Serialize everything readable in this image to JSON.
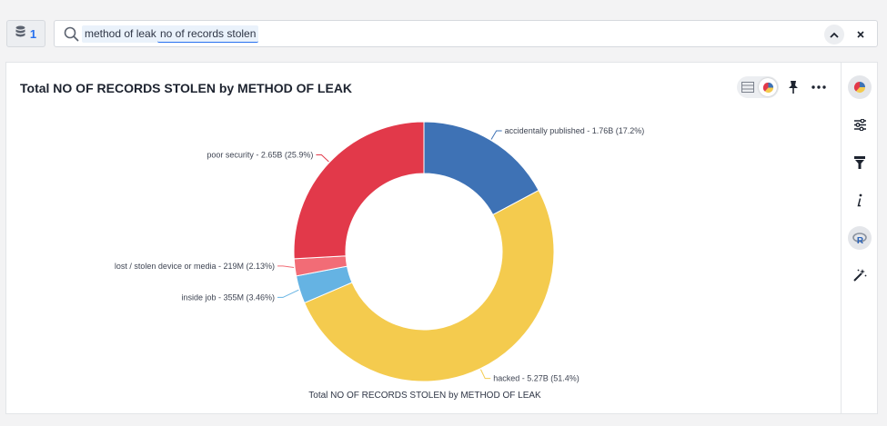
{
  "datasource": {
    "count": "1"
  },
  "search": {
    "tokens": [
      "method of leak",
      "no of records stolen"
    ]
  },
  "chart_title": "Total NO OF RECORDS STOLEN by METHOD OF LEAK",
  "chart_data": {
    "type": "pie",
    "variant": "donut",
    "title": "Total NO OF RECORDS STOLEN by METHOD OF LEAK",
    "xlabel": "Total NO OF RECORDS STOLEN by METHOD OF LEAK",
    "slices": [
      {
        "name": "accidentally published",
        "value": 1.76,
        "unit": "B",
        "percent": 17.2,
        "color": "#3e72b5",
        "label": "accidentally published - 1.76B (17.2%)"
      },
      {
        "name": "hacked",
        "value": 5.27,
        "unit": "B",
        "percent": 51.4,
        "color": "#f4cb4e",
        "label": "hacked - 5.27B (51.4%)"
      },
      {
        "name": "inside job",
        "value": 355,
        "unit": "M",
        "percent": 3.46,
        "color": "#65b3e3",
        "label": "inside job - 355M (3.46%)"
      },
      {
        "name": "lost / stolen device or media",
        "value": 219,
        "unit": "M",
        "percent": 2.13,
        "color": "#f26c76",
        "label": "lost / stolen device or media - 219M (2.13%)"
      },
      {
        "name": "poor security",
        "value": 2.65,
        "unit": "B",
        "percent": 25.9,
        "color": "#e2394a",
        "label": "poor security - 2.65B (25.9%)"
      }
    ]
  },
  "icons": {
    "datasource": "database-icon",
    "search": "search-icon",
    "collapse": "chevron-up-icon",
    "clear": "close-icon",
    "view_table": "table-icon",
    "view_chart": "pie-chart-icon",
    "pin": "pin-icon",
    "more": "more-icon",
    "rail": [
      "chart-type-icon",
      "settings-icon",
      "filter-icon",
      "info-icon",
      "r-analysis-icon",
      "magic-wand-icon"
    ]
  }
}
